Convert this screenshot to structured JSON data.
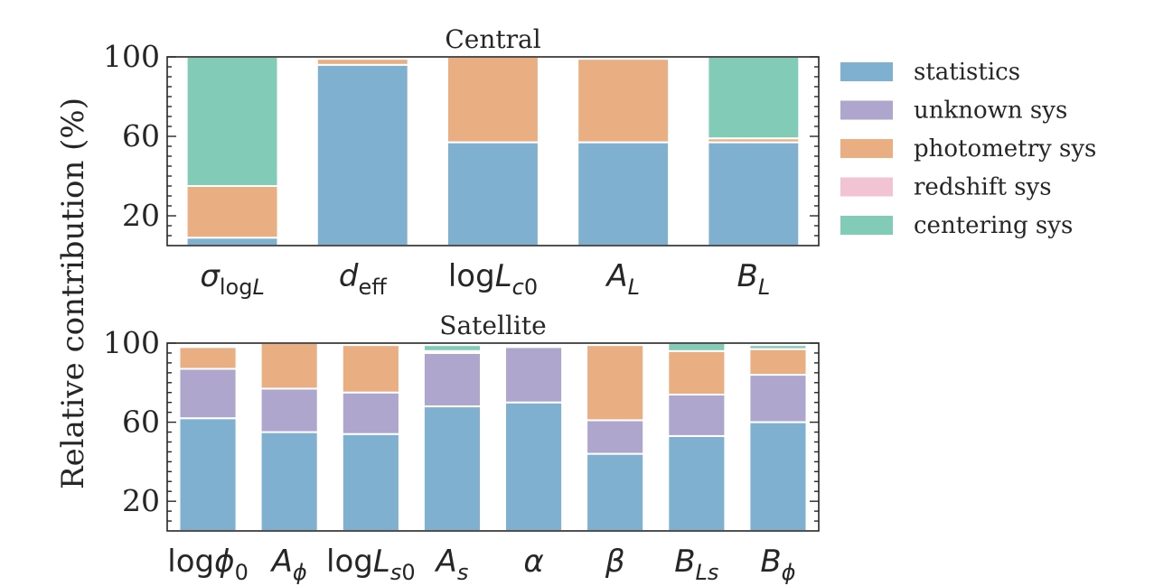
{
  "ylabel": "Relative contribution (%)",
  "legend": {
    "placement": "right",
    "items": [
      {
        "label": "statistics",
        "color": "#7fb0d0"
      },
      {
        "label": "unknown sys",
        "color": "#aea6cd"
      },
      {
        "label": "photometry sys",
        "color": "#e9ae82"
      },
      {
        "label": "redshift sys",
        "color": "#f1c3d3"
      },
      {
        "label": "centering sys",
        "color": "#82ccb7"
      }
    ]
  },
  "chart_data": [
    {
      "type": "bar",
      "stacked": true,
      "title": "Central",
      "ylabel": "Relative contribution (%)",
      "ylim": [
        0,
        100
      ],
      "yticks": [
        "20",
        "60",
        "100"
      ],
      "categories": [
        {
          "main": "σ",
          "sub": "logL"
        },
        {
          "main": "d",
          "sub": "eff"
        },
        {
          "main": "logL",
          "sub": "c0"
        },
        {
          "main": "A",
          "sub": "L"
        },
        {
          "main": "B",
          "sub": "L"
        }
      ],
      "series": [
        {
          "name": "statistics",
          "color": "#7fb0d0",
          "values": [
            9,
            96,
            57,
            57,
            57
          ]
        },
        {
          "name": "unknown sys",
          "color": "#aea6cd",
          "values": [
            0,
            0,
            0,
            0,
            0
          ]
        },
        {
          "name": "photometry sys",
          "color": "#e9ae82",
          "values": [
            26,
            3,
            43,
            42,
            2
          ]
        },
        {
          "name": "redshift sys",
          "color": "#f1c3d3",
          "values": [
            0,
            0,
            0,
            0,
            0
          ]
        },
        {
          "name": "centering sys",
          "color": "#82ccb7",
          "values": [
            65,
            0,
            0,
            0,
            41
          ]
        }
      ]
    },
    {
      "type": "bar",
      "stacked": true,
      "title": "Satellite",
      "ylabel": "Relative contribution (%)",
      "ylim": [
        0,
        100
      ],
      "yticks": [
        "20",
        "60",
        "100"
      ],
      "categories": [
        {
          "main": "logϕ",
          "sub": "0"
        },
        {
          "main": "A",
          "sub": "ϕ"
        },
        {
          "main": "logL",
          "sub": "s0"
        },
        {
          "main": "A",
          "sub": "s"
        },
        {
          "main": "α",
          "sub": ""
        },
        {
          "main": "β",
          "sub": ""
        },
        {
          "main": "B",
          "sub": "Ls"
        },
        {
          "main": "B",
          "sub": "ϕ"
        }
      ],
      "series": [
        {
          "name": "statistics",
          "color": "#7fb0d0",
          "values": [
            62,
            55,
            54,
            68,
            70,
            44,
            53,
            60
          ]
        },
        {
          "name": "unknown sys",
          "color": "#aea6cd",
          "values": [
            25,
            22,
            21,
            27,
            28,
            17,
            21,
            24
          ]
        },
        {
          "name": "photometry sys",
          "color": "#e9ae82",
          "values": [
            11,
            23,
            24,
            1,
            0,
            38,
            22,
            13
          ]
        },
        {
          "name": "redshift sys",
          "color": "#f1c3d3",
          "values": [
            0,
            0,
            0,
            0,
            0,
            0,
            0,
            0
          ]
        },
        {
          "name": "centering sys",
          "color": "#82ccb7",
          "values": [
            0,
            0,
            0,
            3,
            0,
            0,
            4,
            2
          ]
        }
      ]
    }
  ]
}
